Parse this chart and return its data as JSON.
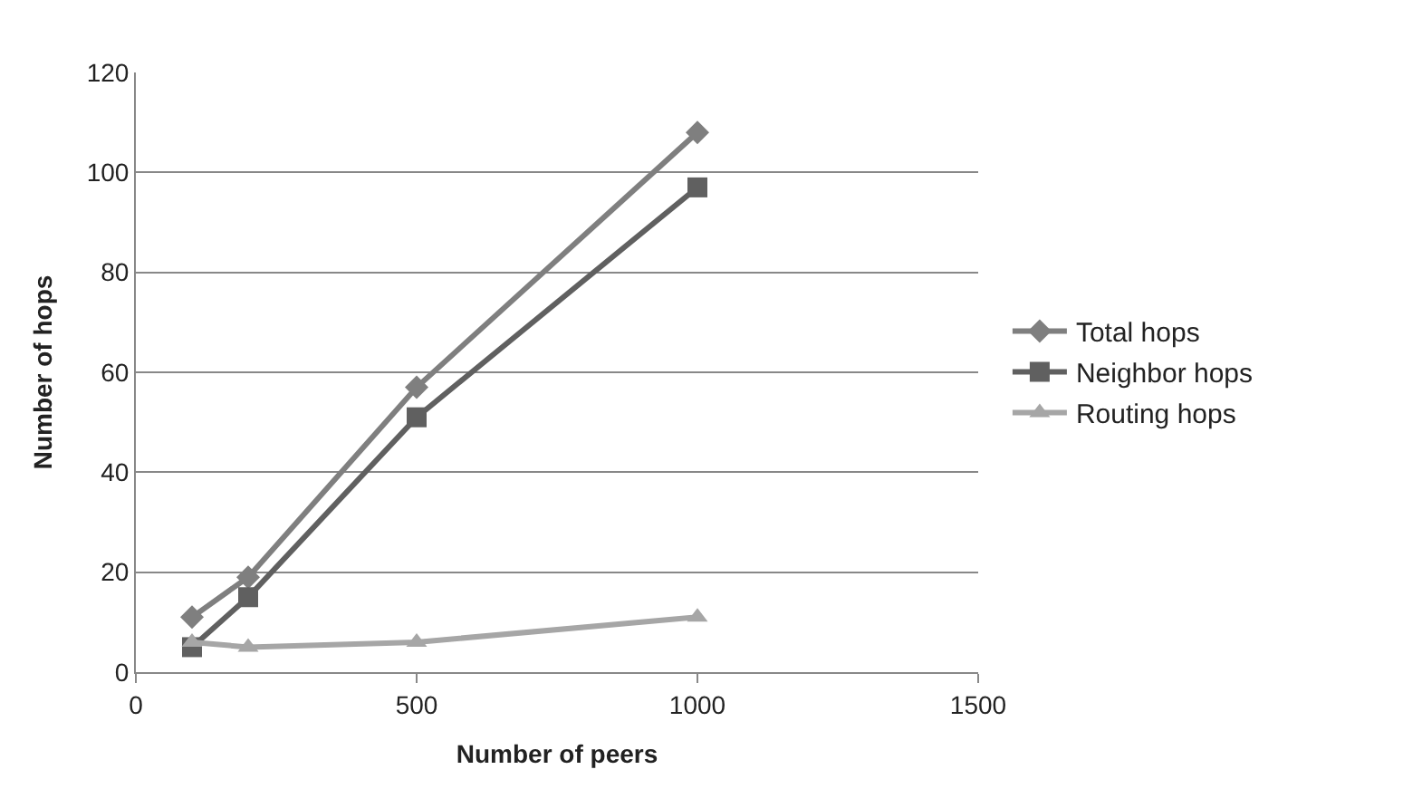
{
  "chart_data": {
    "type": "line",
    "xlabel": "Number of peers",
    "ylabel": "Number of hops",
    "x": [
      100,
      200,
      500,
      1000
    ],
    "series": [
      {
        "name": "Total hops",
        "color": "#7f7f7f",
        "values": [
          11,
          19,
          57,
          108
        ],
        "marker": "diamond"
      },
      {
        "name": "Neighbor hops",
        "color": "#606060",
        "values": [
          5,
          15,
          51,
          97
        ],
        "marker": "square"
      },
      {
        "name": "Routing hops",
        "color": "#a6a6a6",
        "values": [
          6,
          5,
          6,
          11
        ],
        "marker": "triangle"
      }
    ],
    "xlim": [
      0,
      1500
    ],
    "xticks": [
      0,
      500,
      1000,
      1500
    ],
    "ylim": [
      0,
      120
    ],
    "yticks": [
      0,
      20,
      40,
      60,
      80,
      100,
      120
    ],
    "grid": "y",
    "legend": "right",
    "line_style": "solid"
  }
}
